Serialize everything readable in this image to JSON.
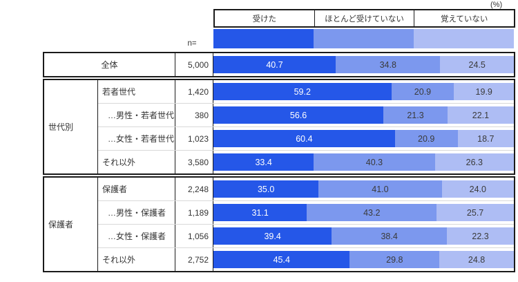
{
  "unit_label": "(%)",
  "n_label": "n=",
  "legend": [
    "受けた",
    "ほとんど受けていない",
    "覚えていない"
  ],
  "colors": [
    "#2557e8",
    "#7c98ee",
    "#aebdf4"
  ],
  "chart_data": {
    "type": "bar",
    "stacked": true,
    "orientation": "horizontal",
    "unit": "%",
    "xlim": [
      0,
      100
    ],
    "legend_position": "top",
    "categories": [
      "全体",
      "若者世代",
      "…男性・若者世代",
      "…女性・若者世代",
      "それ以外",
      "保護者",
      "…男性・保護者",
      "…女性・保護者",
      "それ以外"
    ],
    "n_values": [
      5000,
      1420,
      380,
      1023,
      3580,
      2248,
      1189,
      1056,
      2752
    ],
    "series": [
      {
        "name": "受けた",
        "color": "#2557e8",
        "values": [
          40.7,
          59.2,
          56.6,
          60.4,
          33.4,
          35.0,
          31.1,
          39.4,
          45.4
        ]
      },
      {
        "name": "ほとんど受けていない",
        "color": "#7c98ee",
        "values": [
          34.8,
          20.9,
          21.3,
          20.9,
          40.3,
          41.0,
          43.2,
          38.4,
          29.8
        ]
      },
      {
        "name": "覚えていない",
        "color": "#aebdf4",
        "values": [
          24.5,
          19.9,
          22.1,
          18.7,
          26.3,
          24.0,
          25.7,
          22.3,
          24.8
        ]
      }
    ]
  },
  "sections": [
    {
      "group": null,
      "rows": [
        {
          "label": "全体",
          "n": "5,000",
          "values": [
            "40.7",
            "34.8",
            "24.5"
          ],
          "merged": true
        }
      ]
    },
    {
      "group": "世代別",
      "rows": [
        {
          "label": "若者世代",
          "n": "1,420",
          "values": [
            "59.2",
            "20.9",
            "19.9"
          ]
        },
        {
          "label": "…男性・若者世代",
          "n": "380",
          "values": [
            "56.6",
            "21.3",
            "22.1"
          ],
          "indent": true
        },
        {
          "label": "…女性・若者世代",
          "n": "1,023",
          "values": [
            "60.4",
            "20.9",
            "18.7"
          ],
          "indent": true
        },
        {
          "label": "それ以外",
          "n": "3,580",
          "values": [
            "33.4",
            "40.3",
            "26.3"
          ]
        }
      ]
    },
    {
      "group": "保護者",
      "rows": [
        {
          "label": "保護者",
          "n": "2,248",
          "values": [
            "35.0",
            "41.0",
            "24.0"
          ]
        },
        {
          "label": "…男性・保護者",
          "n": "1,189",
          "values": [
            "31.1",
            "43.2",
            "25.7"
          ],
          "indent": true
        },
        {
          "label": "…女性・保護者",
          "n": "1,056",
          "values": [
            "39.4",
            "38.4",
            "22.3"
          ],
          "indent": true
        },
        {
          "label": "それ以外",
          "n": "2,752",
          "values": [
            "45.4",
            "29.8",
            "24.8"
          ]
        }
      ]
    }
  ]
}
